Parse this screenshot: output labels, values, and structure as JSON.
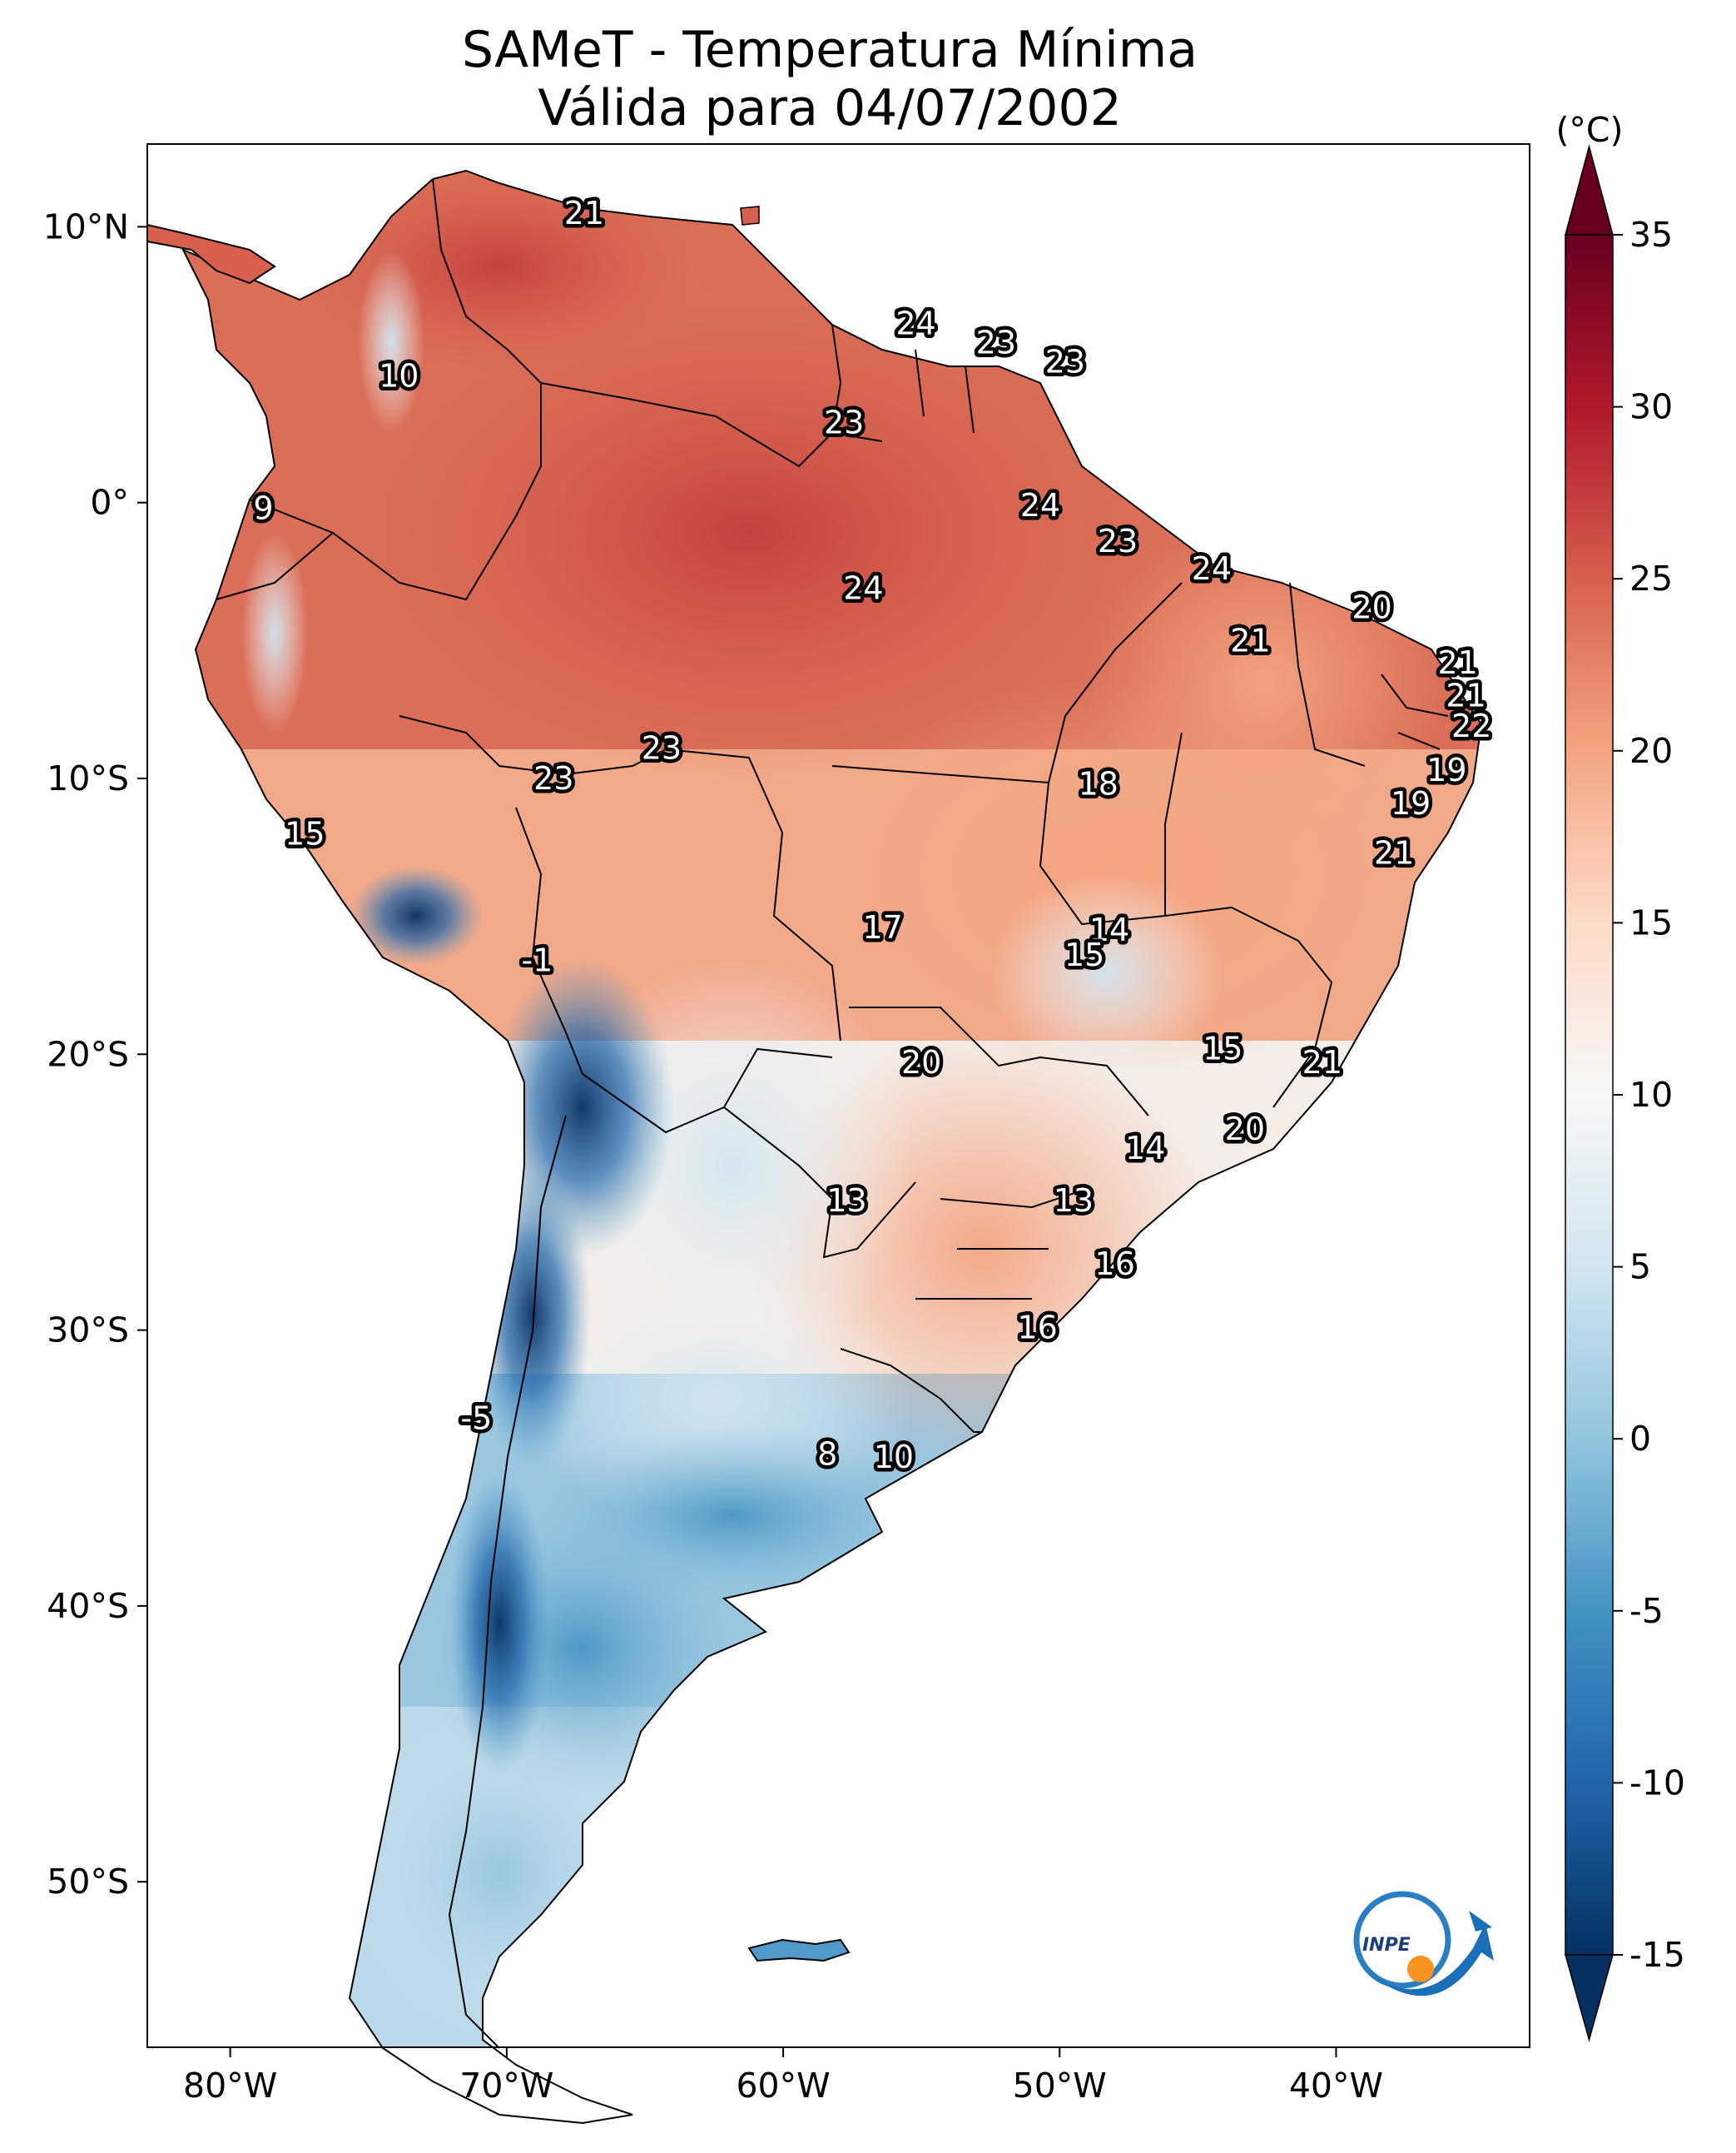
{
  "title": {
    "line1": "SAMeT - Temperatura Mínima",
    "line2": "Válida para 04/07/2002"
  },
  "colorbar": {
    "unit": "(°C)",
    "ticks": [
      "35",
      "30",
      "25",
      "20",
      "15",
      "10",
      "5",
      "0",
      "-5",
      "-10",
      "-15"
    ],
    "tick_values": [
      35,
      30,
      25,
      20,
      15,
      10,
      5,
      0,
      -5,
      -10,
      -15
    ],
    "range": [
      -15,
      35
    ],
    "colors": [
      "#053061",
      "#2166ac",
      "#4393c3",
      "#92c5de",
      "#d1e5f0",
      "#f7f7f7",
      "#fddbc7",
      "#f4a582",
      "#d6604d",
      "#b2182b",
      "#67001f"
    ]
  },
  "axes": {
    "lat_labels": [
      "10°N",
      "0°",
      "10°S",
      "20°S",
      "30°S",
      "40°S",
      "50°S"
    ],
    "lat_values": [
      10,
      0,
      -10,
      -20,
      -30,
      -40,
      -50
    ],
    "lon_labels": [
      "80°W",
      "70°W",
      "60°W",
      "50°W",
      "40°W"
    ],
    "lon_values": [
      -80,
      -70,
      -60,
      -50,
      -40
    ],
    "lon_range": [
      -83,
      -33
    ],
    "lat_range": [
      -56,
      13
    ]
  },
  "temperature_labels": [
    {
      "text": "21",
      "lon": -67.2,
      "lat": 10.5
    },
    {
      "text": "10",
      "lon": -73.9,
      "lat": 4.6
    },
    {
      "text": "24",
      "lon": -55.2,
      "lat": 6.5
    },
    {
      "text": "23",
      "lon": -52.3,
      "lat": 5.8
    },
    {
      "text": "23",
      "lon": -49.8,
      "lat": 5.1
    },
    {
      "text": "23",
      "lon": -57.8,
      "lat": 2.9
    },
    {
      "text": "9",
      "lon": -78.8,
      "lat": -0.2
    },
    {
      "text": "24",
      "lon": -50.7,
      "lat": -0.1
    },
    {
      "text": "23",
      "lon": -47.9,
      "lat": -1.4
    },
    {
      "text": "24",
      "lon": -57.1,
      "lat": -3.1
    },
    {
      "text": "24",
      "lon": -44.5,
      "lat": -2.4
    },
    {
      "text": "20",
      "lon": -38.7,
      "lat": -3.8
    },
    {
      "text": "21",
      "lon": -43.1,
      "lat": -5.0
    },
    {
      "text": "21",
      "lon": -35.6,
      "lat": -5.8
    },
    {
      "text": "21",
      "lon": -35.3,
      "lat": -7.0
    },
    {
      "text": "22",
      "lon": -35.1,
      "lat": -8.1
    },
    {
      "text": "23",
      "lon": -64.4,
      "lat": -8.9
    },
    {
      "text": "23",
      "lon": -68.3,
      "lat": -10.0
    },
    {
      "text": "18",
      "lon": -48.6,
      "lat": -10.2
    },
    {
      "text": "19",
      "lon": -36.0,
      "lat": -9.7
    },
    {
      "text": "19",
      "lon": -37.3,
      "lat": -10.9
    },
    {
      "text": "15",
      "lon": -77.3,
      "lat": -12.0
    },
    {
      "text": "21",
      "lon": -37.9,
      "lat": -12.7
    },
    {
      "text": "17",
      "lon": -56.4,
      "lat": -15.4
    },
    {
      "text": "14",
      "lon": -48.2,
      "lat": -15.5
    },
    {
      "text": "15",
      "lon": -49.1,
      "lat": -16.4
    },
    {
      "text": "-1",
      "lon": -68.9,
      "lat": -16.6
    },
    {
      "text": "15",
      "lon": -44.1,
      "lat": -19.8
    },
    {
      "text": "20",
      "lon": -55.0,
      "lat": -20.3
    },
    {
      "text": "21",
      "lon": -40.5,
      "lat": -20.3
    },
    {
      "text": "20",
      "lon": -43.3,
      "lat": -22.7
    },
    {
      "text": "14",
      "lon": -46.9,
      "lat": -23.4
    },
    {
      "text": "13",
      "lon": -57.7,
      "lat": -25.3
    },
    {
      "text": "13",
      "lon": -49.5,
      "lat": -25.3
    },
    {
      "text": "16",
      "lon": -48.0,
      "lat": -27.6
    },
    {
      "text": "16",
      "lon": -50.8,
      "lat": -29.9
    },
    {
      "text": "-5",
      "lon": -71.1,
      "lat": -33.2
    },
    {
      "text": "8",
      "lon": -58.4,
      "lat": -34.5
    },
    {
      "text": "10",
      "lon": -56.0,
      "lat": -34.6
    }
  ],
  "logo": {
    "text": "INPE"
  }
}
